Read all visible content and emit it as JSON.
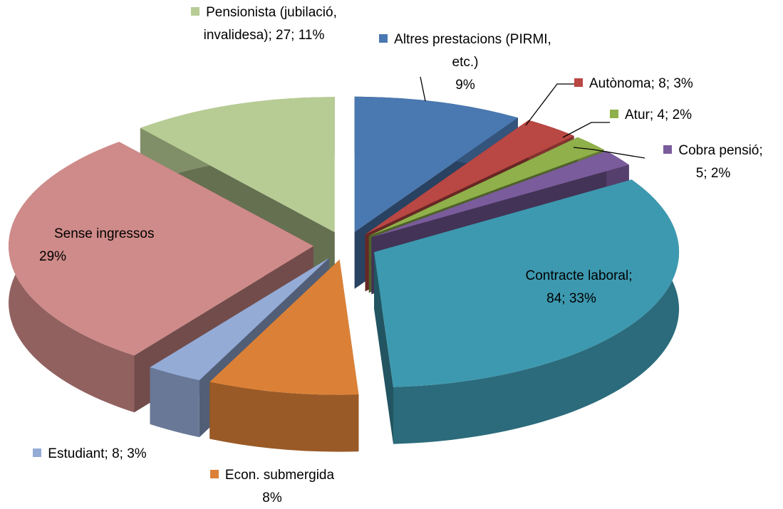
{
  "chart_data": {
    "type": "pie",
    "categories": [
      "Altres prestacions (PIRMI, etc.)",
      "Autònoma",
      "Atur",
      "Cobra pensió",
      "Contracte laboral",
      "Econ. submergida",
      "Estudiant",
      "Sense ingressos",
      "Pensionista (jubilació, invalidesa)"
    ],
    "values": [
      9,
      3,
      2,
      2,
      33,
      8,
      3,
      29,
      11
    ],
    "value_labels": [
      "9%",
      "3%",
      "2%",
      "2%",
      "33%",
      "8%",
      "3%",
      "29%",
      "11%"
    ],
    "counts": [
      null,
      8,
      4,
      5,
      84,
      null,
      8,
      null,
      27
    ],
    "label_separator": "; ",
    "colors": [
      "#4a78b0",
      "#b94743",
      "#8fb04a",
      "#7a5c9c",
      "#3d99b0",
      "#db8137",
      "#94abd6",
      "#cf8b89",
      "#b7cc94"
    ]
  }
}
